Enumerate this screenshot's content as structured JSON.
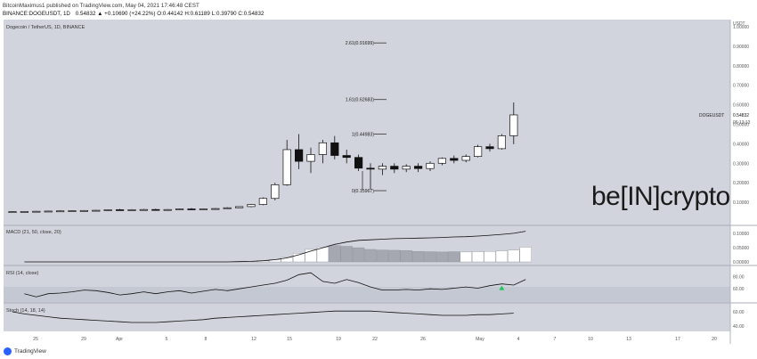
{
  "header": {
    "line1": "BitcoinMaximus1 published on TradingView.com, May 04, 2021 17:46:48 CEST",
    "symbol": "BINANCE:DOGEUSDT, 1D",
    "ohlc": "0.54832 ▲ +0.10690 (+24.22%) O:0.44142 H:0.61189 L:0.39790 C:0.54832"
  },
  "footer": {
    "logo_text": "TradingView"
  },
  "price_panel": {
    "title": "Dogecoin / TetherUS, 1D, BINANCE",
    "currency": "USDT",
    "y_ticks": [
      "1.00000",
      "0.90000",
      "0.80000",
      "0.70000",
      "0.60000",
      "0.50000",
      "0.40000",
      "0.30000",
      "0.20000",
      "0.10000"
    ],
    "price_tag": "0.54832",
    "price_tag_symbol": "DOGEUSDT",
    "countdown": "06:13:13",
    "fib_levels": [
      {
        "label": "2.61(0.91699)",
        "value": 0.91699
      },
      {
        "label": "1.61(0.62683)",
        "value": 0.62683
      },
      {
        "label": "1(0.44983)",
        "value": 0.44983
      },
      {
        "label": "0(0.15967)",
        "value": 0.15967
      }
    ],
    "watermark": "be[IN]crypto"
  },
  "macd_panel": {
    "title": "MACD (21, 50, close, 20)",
    "y_ticks": [
      "0.10000",
      "0.05000",
      "0.00000"
    ]
  },
  "rsi_panel": {
    "title": "RSI (14, close)",
    "y_ticks": [
      "80.00",
      "60.00"
    ]
  },
  "stoch_panel": {
    "title": "Stoch (14, 18, 14)",
    "y_ticks": [
      "60.00",
      "40.00"
    ]
  },
  "x_ticks": [
    "25",
    "29",
    "Apr",
    "5",
    "8",
    "12",
    "15",
    "19",
    "22",
    "26",
    "May",
    "4",
    "7",
    "10",
    "13",
    "17",
    "20"
  ],
  "chart_data": {
    "type": "candlestick",
    "title": "Dogecoin / TetherUS, 1D, BINANCE",
    "ylim": [
      0.0,
      1.0
    ],
    "candles": [
      {
        "o": 0.05,
        "h": 0.054,
        "l": 0.048,
        "c": 0.052
      },
      {
        "o": 0.052,
        "h": 0.055,
        "l": 0.05,
        "c": 0.053
      },
      {
        "o": 0.053,
        "h": 0.056,
        "l": 0.051,
        "c": 0.054
      },
      {
        "o": 0.054,
        "h": 0.057,
        "l": 0.052,
        "c": 0.055
      },
      {
        "o": 0.055,
        "h": 0.058,
        "l": 0.053,
        "c": 0.056
      },
      {
        "o": 0.056,
        "h": 0.059,
        "l": 0.054,
        "c": 0.057
      },
      {
        "o": 0.057,
        "h": 0.06,
        "l": 0.055,
        "c": 0.058
      },
      {
        "o": 0.058,
        "h": 0.061,
        "l": 0.056,
        "c": 0.059
      },
      {
        "o": 0.059,
        "h": 0.064,
        "l": 0.057,
        "c": 0.062
      },
      {
        "o": 0.062,
        "h": 0.066,
        "l": 0.059,
        "c": 0.061
      },
      {
        "o": 0.061,
        "h": 0.065,
        "l": 0.059,
        "c": 0.062
      },
      {
        "o": 0.062,
        "h": 0.066,
        "l": 0.06,
        "c": 0.063
      },
      {
        "o": 0.063,
        "h": 0.067,
        "l": 0.06,
        "c": 0.061
      },
      {
        "o": 0.061,
        "h": 0.065,
        "l": 0.059,
        "c": 0.063
      },
      {
        "o": 0.063,
        "h": 0.068,
        "l": 0.061,
        "c": 0.066
      },
      {
        "o": 0.066,
        "h": 0.071,
        "l": 0.063,
        "c": 0.064
      },
      {
        "o": 0.064,
        "h": 0.068,
        "l": 0.062,
        "c": 0.066
      },
      {
        "o": 0.066,
        "h": 0.07,
        "l": 0.064,
        "c": 0.068
      },
      {
        "o": 0.068,
        "h": 0.075,
        "l": 0.066,
        "c": 0.072
      },
      {
        "o": 0.072,
        "h": 0.08,
        "l": 0.07,
        "c": 0.078
      },
      {
        "o": 0.078,
        "h": 0.092,
        "l": 0.075,
        "c": 0.089
      },
      {
        "o": 0.089,
        "h": 0.125,
        "l": 0.085,
        "c": 0.12
      },
      {
        "o": 0.12,
        "h": 0.2,
        "l": 0.11,
        "c": 0.19
      },
      {
        "o": 0.19,
        "h": 0.42,
        "l": 0.185,
        "c": 0.37
      },
      {
        "o": 0.37,
        "h": 0.45,
        "l": 0.27,
        "c": 0.31
      },
      {
        "o": 0.31,
        "h": 0.38,
        "l": 0.25,
        "c": 0.345
      },
      {
        "o": 0.345,
        "h": 0.42,
        "l": 0.3,
        "c": 0.405
      },
      {
        "o": 0.405,
        "h": 0.44,
        "l": 0.32,
        "c": 0.34
      },
      {
        "o": 0.34,
        "h": 0.37,
        "l": 0.3,
        "c": 0.33
      },
      {
        "o": 0.33,
        "h": 0.345,
        "l": 0.26,
        "c": 0.275
      },
      {
        "o": 0.275,
        "h": 0.3,
        "l": 0.165,
        "c": 0.27
      },
      {
        "o": 0.27,
        "h": 0.3,
        "l": 0.24,
        "c": 0.285
      },
      {
        "o": 0.285,
        "h": 0.3,
        "l": 0.25,
        "c": 0.27
      },
      {
        "o": 0.27,
        "h": 0.295,
        "l": 0.255,
        "c": 0.285
      },
      {
        "o": 0.285,
        "h": 0.3,
        "l": 0.255,
        "c": 0.273
      },
      {
        "o": 0.273,
        "h": 0.31,
        "l": 0.26,
        "c": 0.3
      },
      {
        "o": 0.3,
        "h": 0.33,
        "l": 0.29,
        "c": 0.325
      },
      {
        "o": 0.325,
        "h": 0.34,
        "l": 0.3,
        "c": 0.315
      },
      {
        "o": 0.315,
        "h": 0.345,
        "l": 0.305,
        "c": 0.335
      },
      {
        "o": 0.335,
        "h": 0.395,
        "l": 0.33,
        "c": 0.385
      },
      {
        "o": 0.385,
        "h": 0.4,
        "l": 0.36,
        "c": 0.375
      },
      {
        "o": 0.375,
        "h": 0.45,
        "l": 0.37,
        "c": 0.441
      },
      {
        "o": 0.441,
        "h": 0.612,
        "l": 0.398,
        "c": 0.548
      }
    ],
    "macd_histogram": [
      0,
      0,
      0,
      0,
      0,
      0,
      0,
      0,
      0,
      0,
      0,
      0,
      0,
      0,
      0,
      0,
      0,
      0,
      0.001,
      0.002,
      0.004,
      0.008,
      0.016,
      0.03,
      0.044,
      0.052,
      0.058,
      0.055,
      0.05,
      0.044,
      0.042,
      0.041,
      0.04,
      0.037,
      0.036,
      0.035,
      0.036,
      0.035,
      0.036,
      0.037,
      0.039,
      0.042,
      0.052
    ],
    "macd_line": [
      0,
      0,
      0,
      0,
      0,
      0,
      0,
      0,
      0,
      0,
      0,
      0,
      0,
      0,
      0,
      0,
      0,
      0,
      0.001,
      0.002,
      0.004,
      0.008,
      0.014,
      0.025,
      0.038,
      0.05,
      0.062,
      0.07,
      0.076,
      0.078,
      0.08,
      0.082,
      0.083,
      0.084,
      0.085,
      0.086,
      0.088,
      0.089,
      0.091,
      0.094,
      0.097,
      0.101,
      0.108
    ],
    "rsi": [
      52,
      47,
      52,
      53,
      55,
      58,
      57,
      54,
      50,
      52,
      55,
      52,
      55,
      57,
      53,
      56,
      59,
      57,
      60,
      63,
      66,
      69,
      74,
      83,
      86,
      72,
      69,
      75,
      70,
      63,
      58,
      58,
      59,
      58,
      60,
      59,
      61,
      63,
      61,
      65,
      68,
      66,
      75
    ],
    "stoch": [
      60,
      57,
      55,
      53,
      51,
      50,
      49,
      48,
      47,
      46,
      45,
      45,
      45,
      46,
      47,
      48,
      49,
      51,
      52,
      53,
      54,
      55,
      56,
      57,
      58,
      59,
      60,
      61,
      61,
      61,
      61,
      60,
      59,
      58,
      57,
      56,
      55,
      55,
      55,
      56,
      56,
      57,
      58
    ]
  }
}
